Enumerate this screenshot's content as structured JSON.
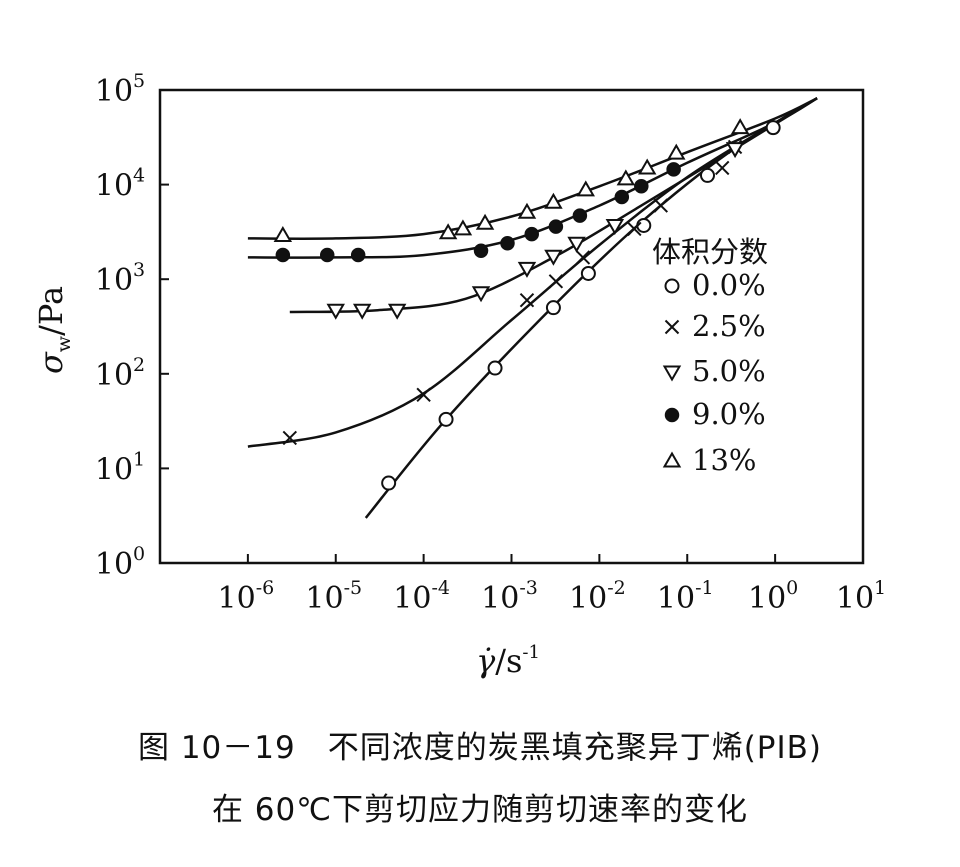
{
  "chart_data": {
    "type": "scatter",
    "xscale": "log",
    "yscale": "log",
    "xlim": [
      1e-07,
      10
    ],
    "ylim": [
      1,
      100000
    ],
    "xticks": [
      {
        "value": 1e-06,
        "base": "10",
        "exp": "-6"
      },
      {
        "value": 1e-05,
        "base": "10",
        "exp": "-5"
      },
      {
        "value": 0.0001,
        "base": "10",
        "exp": "-4"
      },
      {
        "value": 0.001,
        "base": "10",
        "exp": "-3"
      },
      {
        "value": 0.01,
        "base": "10",
        "exp": "-2"
      },
      {
        "value": 0.1,
        "base": "10",
        "exp": "-1"
      },
      {
        "value": 1,
        "base": "10",
        "exp": "0"
      },
      {
        "value": 10,
        "base": "10",
        "exp": "1"
      }
    ],
    "yticks": [
      {
        "value": 1,
        "base": "10",
        "exp": "0"
      },
      {
        "value": 10,
        "base": "10",
        "exp": "1"
      },
      {
        "value": 100,
        "base": "10",
        "exp": "2"
      },
      {
        "value": 1000,
        "base": "10",
        "exp": "3"
      },
      {
        "value": 10000,
        "base": "10",
        "exp": "4"
      },
      {
        "value": 100000,
        "base": "10",
        "exp": "5"
      }
    ],
    "xlabel": {
      "symbol": "γ̇",
      "unit": "/s",
      "exp": "-1"
    },
    "ylabel": {
      "symbol": "σ",
      "sub": "w",
      "unit": "/Pa"
    },
    "legend_title": "体积分数",
    "legend_position": "right-middle",
    "grid": false,
    "series": [
      {
        "name": "0.0%",
        "marker": "circle-open",
        "points": [
          [
            4e-05,
            7
          ],
          [
            0.00018,
            33
          ],
          [
            0.00065,
            115
          ],
          [
            0.003,
            500
          ],
          [
            0.0075,
            1150
          ],
          [
            0.032,
            3700
          ],
          [
            0.17,
            12500
          ],
          [
            0.95,
            40000
          ]
        ],
        "curve": [
          [
            2.2e-05,
            3
          ],
          [
            0.00018,
            33
          ],
          [
            0.003,
            520
          ],
          [
            0.03,
            4000
          ],
          [
            0.3,
            22000
          ],
          [
            3,
            82000
          ]
        ]
      },
      {
        "name": "2.5%",
        "marker": "cross",
        "points": [
          [
            3e-06,
            21
          ],
          [
            0.0001,
            60
          ],
          [
            0.0015,
            600
          ],
          [
            0.0032,
            950
          ],
          [
            0.0065,
            1700
          ],
          [
            0.025,
            3400
          ],
          [
            0.05,
            6000
          ],
          [
            0.25,
            15000
          ],
          [
            0.35,
            25000
          ]
        ],
        "curve": [
          [
            1e-06,
            17
          ],
          [
            1e-05,
            24
          ],
          [
            0.0001,
            62
          ],
          [
            0.001,
            370
          ],
          [
            0.01,
            2300
          ],
          [
            0.1,
            12000
          ],
          [
            1,
            45000
          ],
          [
            3,
            82000
          ]
        ]
      },
      {
        "name": "5.0%",
        "marker": "triangle-down-open",
        "points": [
          [
            1e-05,
            470
          ],
          [
            2e-05,
            470
          ],
          [
            5e-05,
            470
          ],
          [
            0.00045,
            720
          ],
          [
            0.0015,
            1300
          ],
          [
            0.003,
            1750
          ],
          [
            0.0055,
            2400
          ],
          [
            0.015,
            3700
          ],
          [
            0.35,
            24000
          ]
        ],
        "curve": [
          [
            3e-06,
            450
          ],
          [
            3e-05,
            470
          ],
          [
            0.0003,
            620
          ],
          [
            0.003,
            1700
          ],
          [
            0.03,
            6000
          ],
          [
            0.3,
            22000
          ],
          [
            3,
            82000
          ]
        ]
      },
      {
        "name": "9.0%",
        "marker": "circle-filled",
        "points": [
          [
            2.5e-06,
            1800
          ],
          [
            8e-06,
            1800
          ],
          [
            1.8e-05,
            1800
          ],
          [
            0.00045,
            2000
          ],
          [
            0.0009,
            2400
          ],
          [
            0.0017,
            3000
          ],
          [
            0.0032,
            3600
          ],
          [
            0.006,
            4700
          ],
          [
            0.018,
            7400
          ],
          [
            0.03,
            9600
          ],
          [
            0.07,
            14500
          ]
        ],
        "curve": [
          [
            1e-06,
            1700
          ],
          [
            1e-05,
            1700
          ],
          [
            0.0001,
            1800
          ],
          [
            0.001,
            2600
          ],
          [
            0.01,
            6000
          ],
          [
            0.1,
            17000
          ],
          [
            1,
            45000
          ],
          [
            3,
            82000
          ]
        ]
      },
      {
        "name": "13%",
        "marker": "triangle-up-open",
        "points": [
          [
            2.5e-06,
            2900
          ],
          [
            0.00019,
            3100
          ],
          [
            0.00028,
            3400
          ],
          [
            0.0005,
            3900
          ],
          [
            0.0015,
            5100
          ],
          [
            0.003,
            6500
          ],
          [
            0.007,
            8800
          ],
          [
            0.02,
            11500
          ],
          [
            0.035,
            15000
          ],
          [
            0.075,
            21500
          ],
          [
            0.4,
            40000
          ]
        ],
        "curve": [
          [
            1e-06,
            2700
          ],
          [
            1e-05,
            2700
          ],
          [
            0.0001,
            3000
          ],
          [
            0.001,
            4600
          ],
          [
            0.01,
            9600
          ],
          [
            0.1,
            22000
          ],
          [
            1,
            50000
          ],
          [
            3,
            82000
          ]
        ]
      }
    ]
  },
  "caption": {
    "line1": "图 10－19　不同浓度的炭黑填充聚异丁烯(PIB)",
    "line2": "在 60℃下剪切应力随剪切速率的变化"
  }
}
